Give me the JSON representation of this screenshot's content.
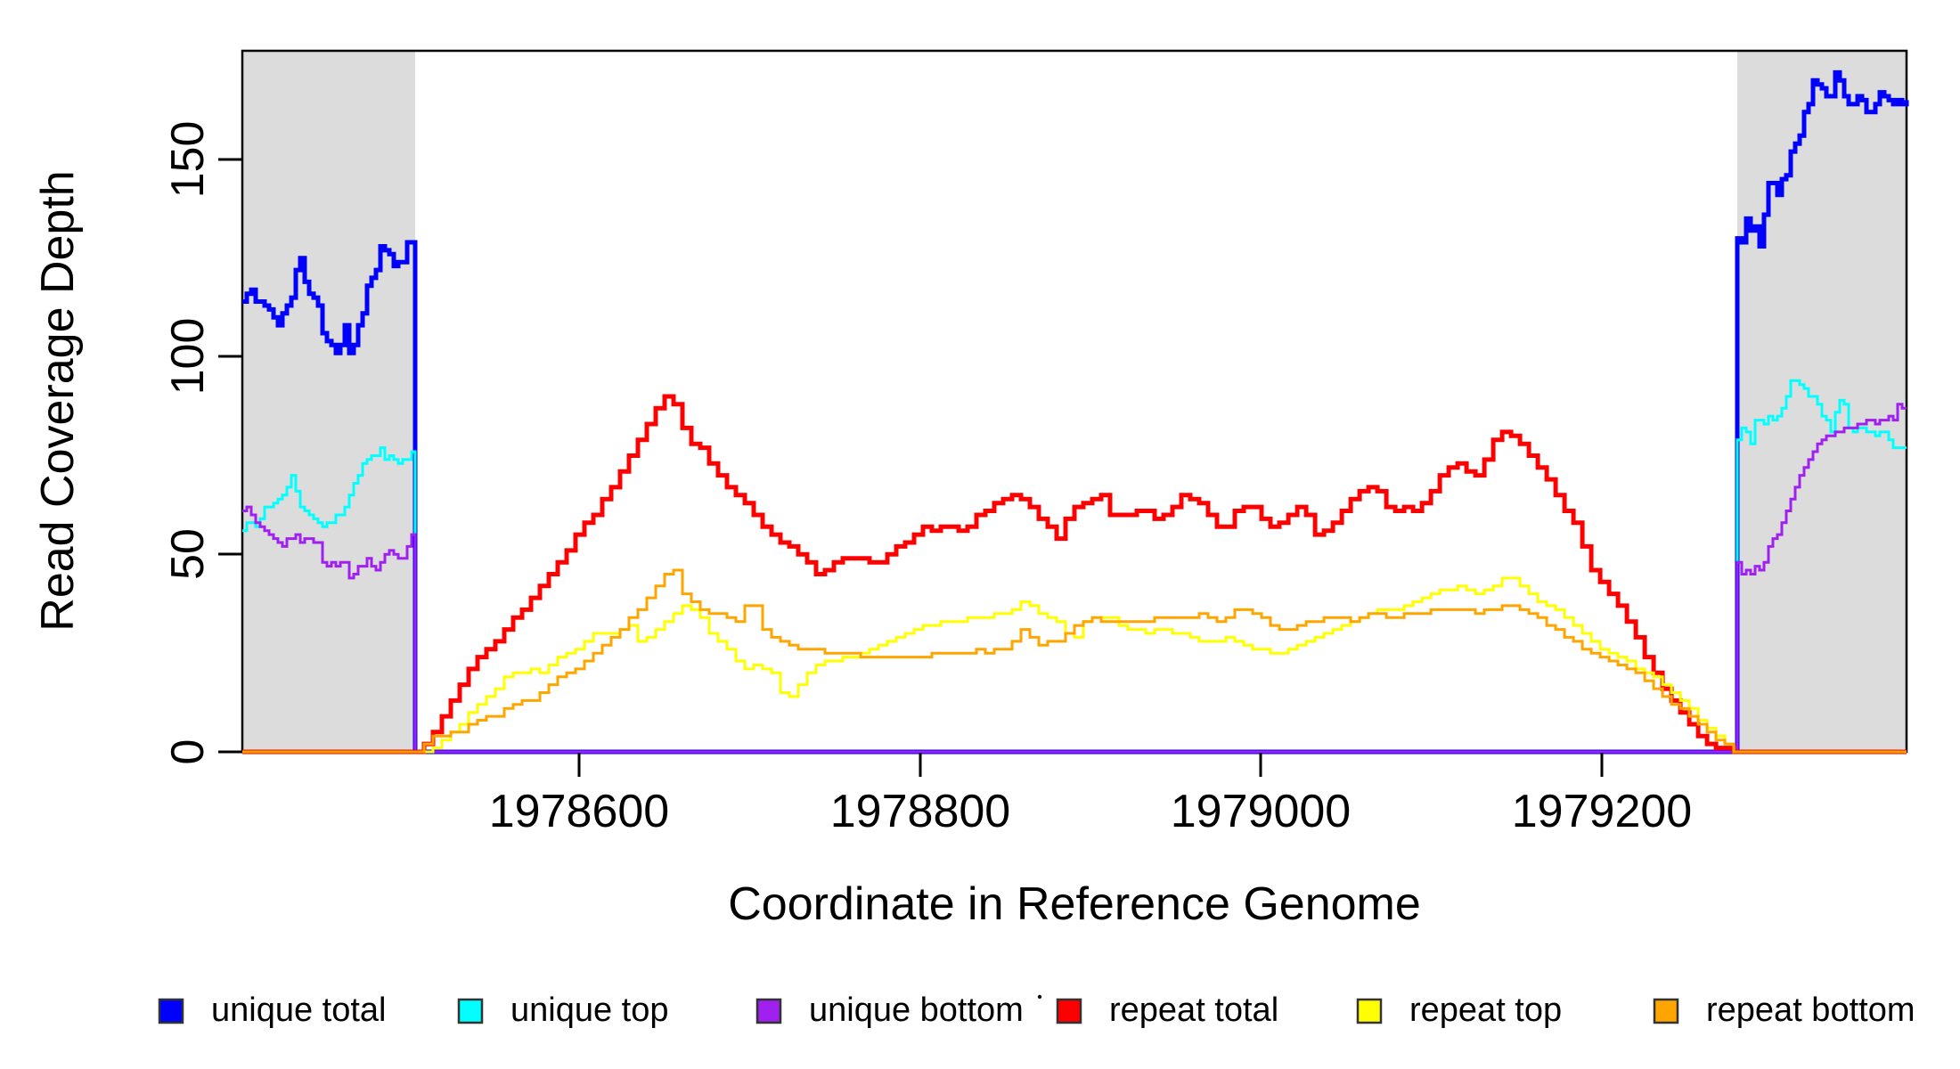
{
  "figure": {
    "background": "#ffffff",
    "shaded_region_color": "#DCDCDC",
    "box_color": "#000000"
  },
  "y_axis": {
    "label": "Read Coverage Depth",
    "ticks": [
      "0",
      "50",
      "100",
      "150"
    ]
  },
  "x_axis": {
    "label": "Coordinate in Reference Genome",
    "ticks": [
      "1978600",
      "1978800",
      "1979000",
      "1979200"
    ]
  },
  "legend": {
    "items": [
      {
        "label": "unique total",
        "color": "#0000FF"
      },
      {
        "label": "unique top",
        "color": "#00FFFF"
      },
      {
        "label": "unique bottom",
        "color": "#A020F0"
      },
      {
        "label": "repeat total",
        "color": "#FF0000"
      },
      {
        "label": "repeat top",
        "color": "#FFFF00"
      },
      {
        "label": "repeat bottom",
        "color": "#FFA500"
      }
    ]
  },
  "chart_data": {
    "type": "line",
    "title": "",
    "xlabel": "Coordinate in Reference Genome",
    "ylabel": "Read Coverage Depth",
    "xlim": [
      1978402.5,
      1979378.7
    ],
    "ylim": [
      0,
      177.5
    ],
    "x_ticks": [
      1978600,
      1978800,
      1979000,
      1979200
    ],
    "y_ticks": [
      0,
      50,
      100,
      150
    ],
    "grid": false,
    "legend_position": "bottom",
    "interpolation": "step-after",
    "shaded_regions": [
      {
        "x0": 1978402.5,
        "x1": 1978503.9,
        "color": "#DCDCDC"
      },
      {
        "x0": 1979279.4,
        "x1": 1979378.7,
        "color": "#DCDCDC"
      }
    ],
    "series": [
      {
        "name": "unique total",
        "color": "#0000FF",
        "lwd": 5,
        "segments": [
          {
            "x0": 1978402.5,
            "dx": 2.613,
            "values": [
              114,
              116,
              117,
              114,
              114,
              113,
              112,
              110,
              108,
              111,
              113,
              115,
              122,
              125,
              119,
              116,
              115,
              113,
              106,
              104,
              103,
              101,
              103,
              108,
              101,
              103,
              108,
              111,
              118,
              120,
              122,
              128,
              127,
              126,
              123,
              124,
              124,
              129,
              129
            ]
          },
          {
            "x0": 1978503.9,
            "dx": 775.5,
            "values": [
              0,
              0
            ]
          },
          {
            "x0": 1979279.4,
            "dx": 2.613,
            "values": [
              130,
              129,
              135,
              132,
              133,
              128,
              136,
              144,
              144,
              141,
              145,
              146,
              152,
              154,
              156,
              162,
              164,
              170,
              169,
              168,
              166,
              166,
              172,
              170,
              166,
              164,
              164,
              166,
              165,
              162,
              162,
              164,
              167,
              166,
              165,
              164,
              165,
              164,
              165
            ]
          }
        ]
      },
      {
        "name": "unique top",
        "color": "#00FFFF",
        "lwd": 3,
        "segments": [
          {
            "x0": 1978402.5,
            "dx": 2.613,
            "values": [
              56,
              58,
              58,
              57,
              59,
              62,
              62,
              63,
              64,
              65,
              67,
              70,
              66,
              62,
              61,
              60,
              59,
              58,
              57,
              58,
              58,
              60,
              60,
              62,
              65,
              68,
              70,
              73,
              74,
              75,
              75,
              77,
              74,
              75,
              74,
              73,
              74,
              74,
              76
            ]
          },
          {
            "x0": 1978503.9,
            "dx": 775.5,
            "values": [
              0,
              0
            ]
          },
          {
            "x0": 1979279.4,
            "dx": 2.613,
            "values": [
              79,
              82,
              81,
              78,
              84,
              84,
              83,
              85,
              84,
              85,
              87,
              90,
              94,
              94,
              93,
              92,
              90,
              90,
              88,
              85,
              84,
              81,
              86,
              89,
              88,
              82,
              81,
              82,
              82,
              81,
              81,
              80,
              81,
              81,
              79,
              77,
              77,
              77,
              77
            ]
          }
        ]
      },
      {
        "name": "unique bottom",
        "color": "#A020F0",
        "lwd": 3,
        "segments": [
          {
            "x0": 1978402.5,
            "dx": 2.613,
            "values": [
              61,
              62,
              60,
              58,
              57,
              56,
              55,
              54,
              53,
              52,
              54,
              54,
              55,
              53,
              54,
              54,
              53,
              53,
              48,
              47,
              48,
              47,
              48,
              48,
              44,
              45,
              47,
              47,
              49,
              47,
              46,
              48,
              50,
              51,
              50,
              49,
              49,
              52,
              55
            ]
          },
          {
            "x0": 1978503.9,
            "dx": 775.5,
            "values": [
              0,
              0
            ]
          },
          {
            "x0": 1979279.4,
            "dx": 2.613,
            "values": [
              48,
              45,
              46,
              45,
              47,
              46,
              48,
              52,
              54,
              55,
              58,
              61,
              64,
              67,
              70,
              72,
              74,
              76,
              78,
              79,
              80,
              80,
              81,
              81,
              82,
              82,
              82,
              83,
              83,
              84,
              84,
              83,
              84,
              84,
              85,
              84,
              88,
              87,
              87
            ]
          }
        ]
      },
      {
        "name": "repeat total",
        "color": "#FF0000",
        "lwd": 5,
        "segments": [
          {
            "x0": 1978402.5,
            "dx": 101.4,
            "values": [
              0,
              0
            ]
          },
          {
            "x0": 1978503.9,
            "dx": 5.226,
            "values": [
              0,
              2,
              5,
              9,
              13,
              17,
              21,
              24,
              26,
              28,
              31,
              34,
              36,
              39,
              42,
              45,
              48,
              51,
              55,
              58,
              60,
              64,
              67,
              71,
              75,
              79,
              83,
              87,
              90,
              88,
              82,
              78,
              77,
              73,
              70,
              67,
              65,
              63,
              60,
              57,
              55,
              53,
              52,
              50,
              48,
              45,
              46,
              48,
              49,
              49,
              49,
              48,
              48,
              50,
              52,
              53,
              55,
              57,
              56,
              57,
              57,
              56,
              57,
              60,
              61,
              63,
              64,
              65,
              64,
              62,
              59,
              57,
              54,
              59,
              62,
              63,
              64,
              65,
              60,
              60,
              60,
              61,
              61,
              59,
              60,
              62,
              65,
              64,
              63,
              60,
              57,
              57,
              61,
              62,
              62,
              59,
              57,
              58,
              60,
              62,
              60,
              55,
              56,
              58,
              61,
              64,
              66,
              67,
              66,
              62,
              61,
              62,
              61,
              63,
              66,
              70,
              72,
              73,
              71,
              70,
              74,
              79,
              81,
              80,
              78,
              75,
              72,
              69,
              65,
              61,
              58,
              52,
              46,
              43,
              40,
              37,
              33,
              29,
              24,
              20,
              16,
              13,
              10,
              7,
              4,
              2,
              1,
              1,
              0
            ]
          },
          {
            "x0": 1979378.7,
            "dx": 0,
            "values": [
              0
            ]
          }
        ]
      },
      {
        "name": "repeat top",
        "color": "#FFFF00",
        "lwd": 3,
        "segments": [
          {
            "x0": 1978402.5,
            "dx": 101.4,
            "values": [
              0,
              0
            ]
          },
          {
            "x0": 1978503.9,
            "dx": 5.226,
            "values": [
              0,
              0,
              1,
              3,
              5,
              7,
              10,
              12,
              14,
              16,
              19,
              20,
              20,
              21,
              20,
              22,
              24,
              25,
              26,
              28,
              30,
              30,
              30,
              31,
              32,
              28,
              29,
              31,
              33,
              35,
              37,
              36,
              34,
              30,
              28,
              26,
              23,
              21,
              22,
              21,
              20,
              15,
              14,
              17,
              20,
              22,
              23,
              23,
              24,
              24,
              25,
              26,
              27,
              28,
              29,
              30,
              31,
              32,
              32,
              33,
              33,
              33,
              34,
              34,
              34,
              35,
              35,
              36,
              38,
              37,
              35,
              34,
              33,
              30,
              29,
              33,
              34,
              34,
              34,
              32,
              31,
              31,
              30,
              31,
              31,
              30,
              30,
              29,
              28,
              28,
              28,
              29,
              28,
              27,
              26,
              26,
              25,
              25,
              26,
              27,
              28,
              29,
              30,
              31,
              32,
              33,
              34,
              35,
              36,
              36,
              36,
              37,
              38,
              39,
              40,
              41,
              41,
              42,
              41,
              40,
              41,
              42,
              44,
              44,
              42,
              40,
              38,
              37,
              36,
              34,
              32,
              30,
              28,
              26,
              25,
              24,
              23,
              21,
              20,
              19,
              17,
              15,
              13,
              11,
              8,
              6,
              4,
              2,
              0
            ]
          },
          {
            "x0": 1979378.7,
            "dx": 0,
            "values": [
              0
            ]
          }
        ]
      },
      {
        "name": "repeat bottom",
        "color": "#FFA500",
        "lwd": 3,
        "segments": [
          {
            "x0": 1978402.5,
            "dx": 101.4,
            "values": [
              0,
              0
            ]
          },
          {
            "x0": 1978503.9,
            "dx": 5.226,
            "values": [
              0,
              2,
              4,
              4,
              5,
              5,
              7,
              8,
              9,
              9,
              11,
              12,
              13,
              13,
              15,
              17,
              19,
              20,
              21,
              23,
              25,
              27,
              29,
              31,
              34,
              36,
              39,
              42,
              45,
              46,
              40,
              38,
              36,
              35,
              35,
              34,
              33,
              37,
              37,
              31,
              29,
              28,
              27,
              26,
              26,
              26,
              25,
              25,
              25,
              25,
              24,
              24,
              24,
              24,
              24,
              24,
              24,
              24,
              25,
              25,
              25,
              25,
              25,
              26,
              25,
              26,
              26,
              28,
              31,
              29,
              27,
              28,
              28,
              30,
              32,
              33,
              34,
              33,
              33,
              33,
              33,
              33,
              33,
              34,
              34,
              34,
              34,
              34,
              35,
              34,
              33,
              34,
              36,
              36,
              35,
              34,
              32,
              31,
              31,
              32,
              33,
              33,
              34,
              34,
              34,
              33,
              34,
              35,
              35,
              34,
              34,
              35,
              35,
              35,
              36,
              36,
              36,
              36,
              36,
              35,
              36,
              36,
              37,
              37,
              36,
              35,
              34,
              32,
              31,
              29,
              28,
              26,
              25,
              24,
              23,
              22,
              21,
              20,
              18,
              16,
              14,
              12,
              11,
              9,
              7,
              5,
              3,
              2,
              0
            ]
          },
          {
            "x0": 1979378.7,
            "dx": 0,
            "values": [
              0
            ]
          }
        ]
      }
    ]
  }
}
